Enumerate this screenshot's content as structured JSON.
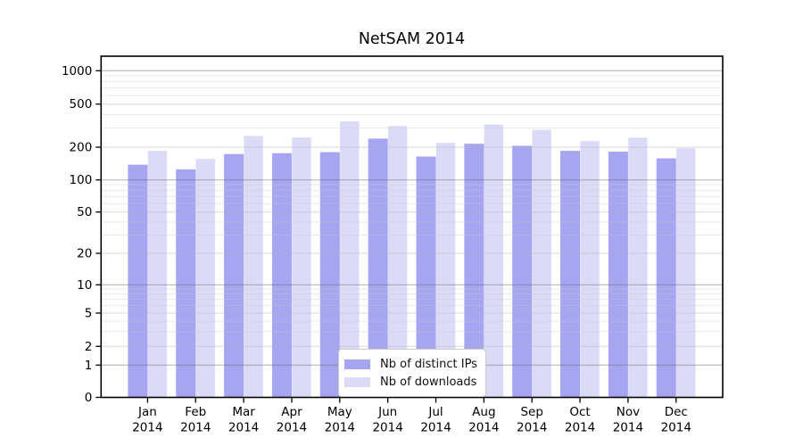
{
  "title": "NetSAM 2014",
  "chart_data": {
    "type": "bar",
    "title": "NetSAM 2014",
    "categories": [
      "Jan 2014",
      "Feb 2014",
      "Mar 2014",
      "Apr 2014",
      "May 2014",
      "Jun 2014",
      "Jul 2014",
      "Aug 2014",
      "Sep 2014",
      "Oct 2014",
      "Nov 2014",
      "Dec 2014"
    ],
    "series": [
      {
        "name": "Nb of distinct IPs",
        "color": "#a5a5f2",
        "values": [
          138,
          125,
          173,
          176,
          180,
          240,
          164,
          215,
          206,
          185,
          182,
          158
        ]
      },
      {
        "name": "Nb of downloads",
        "color": "#dbdbf8",
        "values": [
          185,
          156,
          254,
          246,
          346,
          314,
          219,
          324,
          289,
          228,
          245,
          196
        ]
      }
    ],
    "xlabel": "",
    "ylabel": "",
    "yscale": "log (1-2-5 ticks, 0 baseline)",
    "yticks": [
      0,
      1,
      2,
      5,
      10,
      20,
      50,
      100,
      200,
      500,
      1000
    ],
    "ylim": [
      0,
      1400
    ],
    "grid": true,
    "legend_position": "inside-bottom-center"
  },
  "colors": {
    "bar_dark": "#a5a5f2",
    "bar_light": "#dbdbf8",
    "grid_decade": "#6e6e6e",
    "grid_labeled": "#b4b4b4",
    "grid_minor": "#c9c9c9",
    "axis": "#000000",
    "legend_border": "#cccccc"
  }
}
